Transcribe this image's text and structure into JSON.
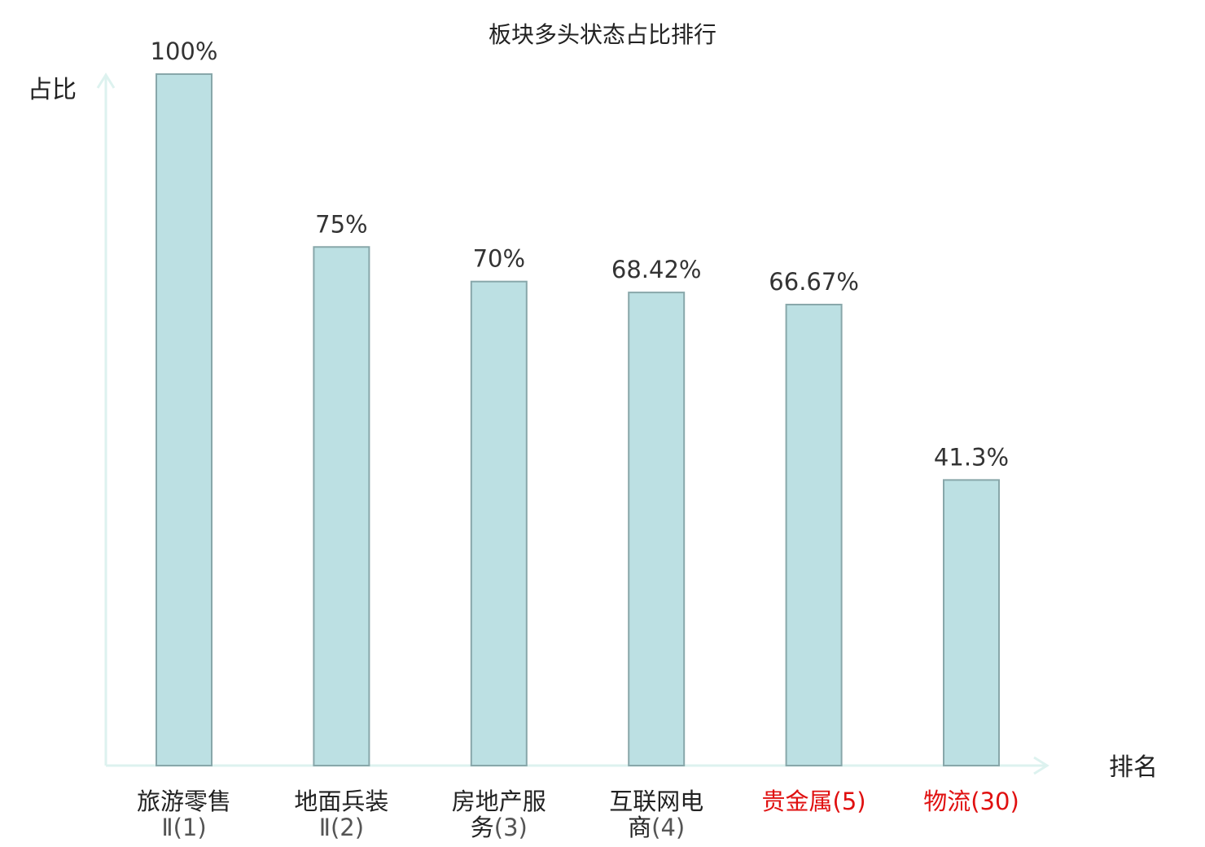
{
  "chart_data": {
    "type": "bar",
    "title": "板块多头状态占比排行",
    "ylabel": "占比",
    "xlabel": "排名",
    "ylim": [
      0,
      100
    ],
    "grid": false,
    "legend": "none",
    "categories": [
      {
        "lines": [
          {
            "name": "旅游零售",
            "rank": ""
          },
          {
            "name": "",
            "rank": "Ⅱ(1)"
          }
        ],
        "highlight": false
      },
      {
        "lines": [
          {
            "name": "地面兵装",
            "rank": ""
          },
          {
            "name": "",
            "rank": "Ⅱ(2)"
          }
        ],
        "highlight": false
      },
      {
        "lines": [
          {
            "name": "房地产服",
            "rank": ""
          },
          {
            "name": "务",
            "rank": "(3)"
          }
        ],
        "highlight": false
      },
      {
        "lines": [
          {
            "name": "互联网电",
            "rank": ""
          },
          {
            "name": "商",
            "rank": "(4)"
          }
        ],
        "highlight": false
      },
      {
        "lines": [
          {
            "name": "贵金属",
            "rank": "(5)"
          }
        ],
        "highlight": true
      },
      {
        "lines": [
          {
            "name": "物流",
            "rank": "(30)"
          }
        ],
        "highlight": true
      }
    ],
    "values": [
      100,
      75,
      70,
      68.42,
      66.67,
      41.3
    ],
    "value_labels": [
      "100%",
      "75%",
      "70%",
      "68.42%",
      "66.67%",
      "41.3%"
    ],
    "colors": {
      "bar_fill": "#bce0e3",
      "bar_stroke": "#88a7aa",
      "axis": "#ddf2ef",
      "highlight_text": "#e01010"
    }
  }
}
